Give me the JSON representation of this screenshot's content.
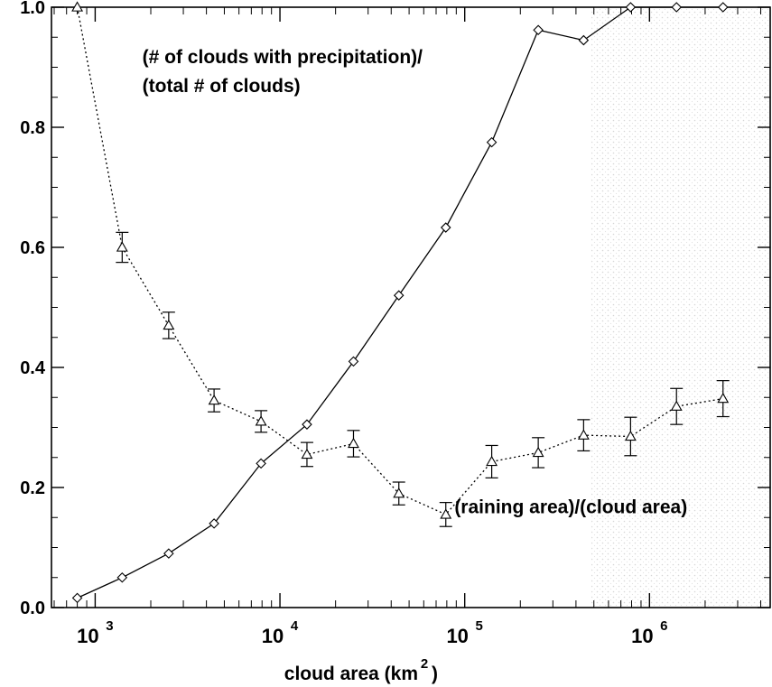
{
  "chart_data": {
    "type": "line",
    "title": "",
    "xlabel": "cloud area (km",
    "xlabel_superscript": "2",
    "xlabel_suffix": ")",
    "ylabel": "",
    "x_scale": "log",
    "xlim": [
      580,
      4500000
    ],
    "ylim": [
      0,
      1.0
    ],
    "x_ticks": [
      {
        "value": 1000,
        "base": "10",
        "exp": "3"
      },
      {
        "value": 10000,
        "base": "10",
        "exp": "4"
      },
      {
        "value": 100000,
        "base": "10",
        "exp": "5"
      },
      {
        "value": 1000000,
        "base": "10",
        "exp": "6"
      }
    ],
    "y_ticks": [
      "0.0",
      "0.2",
      "0.4",
      "0.6",
      "0.8",
      "1.0"
    ],
    "grid": false,
    "series": [
      {
        "name": "(# of clouds with precipitation)/(total # of clouds)",
        "marker": "diamond",
        "line": "solid",
        "x": [
          800,
          1400,
          2500,
          4400,
          7900,
          14000,
          25000,
          44000,
          79000,
          140000,
          250000,
          440000,
          790000,
          1400000,
          2500000
        ],
        "y": [
          0.016,
          0.05,
          0.09,
          0.14,
          0.24,
          0.305,
          0.41,
          0.52,
          0.633,
          0.775,
          0.962,
          0.945,
          1.0,
          1.0,
          1.0
        ]
      },
      {
        "name": "(raining area)/(cloud area)",
        "marker": "triangle",
        "line": "dotted",
        "x": [
          800,
          1400,
          2500,
          4400,
          7900,
          14000,
          25000,
          44000,
          79000,
          140000,
          250000,
          440000,
          790000,
          1400000,
          2500000
        ],
        "y": [
          1.0,
          0.6,
          0.47,
          0.345,
          0.31,
          0.255,
          0.273,
          0.19,
          0.155,
          0.243,
          0.258,
          0.287,
          0.285,
          0.335,
          0.348
        ],
        "error": [
          null,
          0.025,
          0.022,
          0.019,
          0.018,
          0.02,
          0.022,
          0.019,
          0.02,
          0.027,
          0.025,
          0.026,
          0.032,
          0.03,
          0.03
        ]
      }
    ],
    "annotations": [
      {
        "lines": [
          "(# of clouds with precipitation)/",
          "(total # of clouds)"
        ],
        "x": 1800,
        "y": 0.907
      },
      {
        "lines": [
          "(raining area)/(cloud area)"
        ],
        "x": 88000,
        "y": 0.157
      }
    ]
  }
}
